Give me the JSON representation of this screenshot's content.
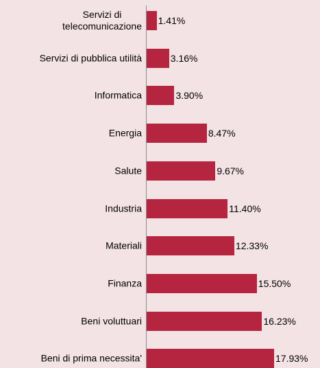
{
  "chart_data": {
    "type": "bar",
    "orientation": "horizontal",
    "categories": [
      "Servizi di\ntelecomunicazione",
      "Servizi di pubblica utilità",
      "Informatica",
      "Energia",
      "Salute",
      "Industria",
      "Materiali",
      "Finanza",
      "Beni voluttuari",
      "Beni di prima necessita'"
    ],
    "values": [
      1.41,
      3.16,
      3.9,
      8.47,
      9.67,
      11.4,
      12.33,
      15.5,
      16.23,
      17.93
    ],
    "value_labels": [
      "1.41%",
      "3.16%",
      "3.90%",
      "8.47%",
      "9.67%",
      "11.40%",
      "12.33%",
      "15.50%",
      "16.23%",
      "17.93%"
    ],
    "color": "#b5253f"
  }
}
